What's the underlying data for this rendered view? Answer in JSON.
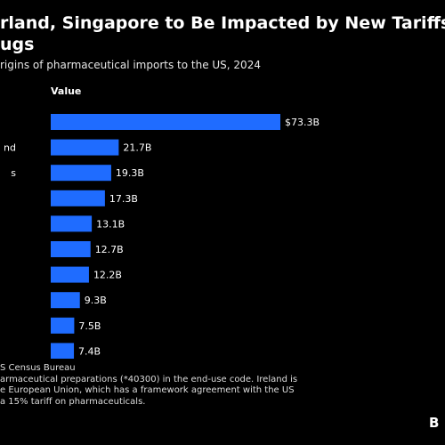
{
  "title_line1": "rland, Singapore to Be Impacted by New Tariffs",
  "title_line2": "ugs",
  "subtitle": "rigins of pharmaceutical imports to the US, 2024",
  "column_header": "Value",
  "source": "S Census Bureau",
  "note_line1": "armaceutical preparations (*40300) in the end-use code. Ireland is",
  "note_line2": "e European Union, which has a framework agreement with the US",
  "note_line3": "a 15% tariff on pharmaceuticals.",
  "logo_text": "B",
  "bar_color": "#1f6cff",
  "chart_data": {
    "type": "bar",
    "orientation": "horizontal",
    "categories": [
      "",
      "nd",
      "s",
      "",
      "",
      "",
      "",
      "",
      "",
      ""
    ],
    "values": [
      73.3,
      21.7,
      19.3,
      17.3,
      13.1,
      12.7,
      12.2,
      9.3,
      7.5,
      7.4
    ],
    "value_labels": [
      "$73.3B",
      "21.7B",
      "19.3B",
      "17.3B",
      "13.1B",
      "12.7B",
      "12.2B",
      "9.3B",
      "7.5B",
      "7.4B"
    ],
    "title": "rland, Singapore to Be Impacted by New Tariffs ugs",
    "subtitle": "rigins of pharmaceutical imports to the US, 2024",
    "xlabel": "Value",
    "ylabel": "",
    "xlim": [
      0,
      73.3
    ],
    "grid": false,
    "legend": "none"
  }
}
